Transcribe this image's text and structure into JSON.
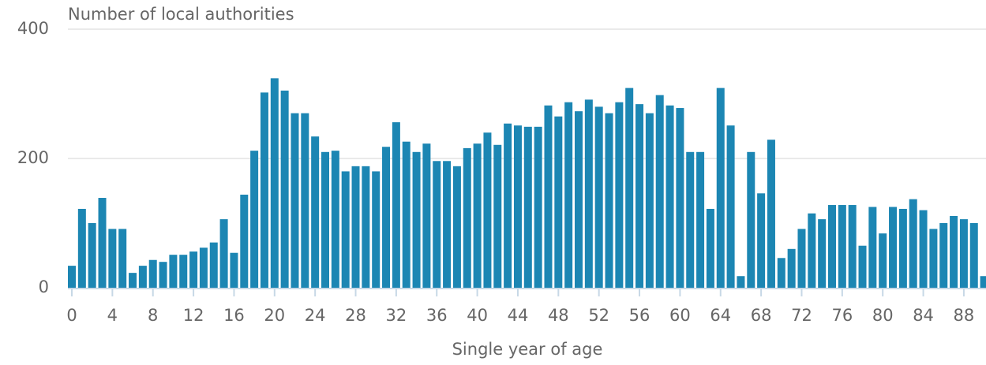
{
  "chart_data": {
    "type": "bar",
    "title": "Number of local authorities",
    "x_label": "Single year of age",
    "categories": [
      "0",
      null,
      null,
      null,
      "4",
      null,
      null,
      null,
      "8",
      null,
      null,
      null,
      "12",
      null,
      null,
      null,
      "16",
      null,
      null,
      null,
      "20",
      null,
      null,
      null,
      "24",
      null,
      null,
      null,
      "28",
      null,
      null,
      null,
      "32",
      null,
      null,
      null,
      "36",
      null,
      null,
      null,
      "40",
      null,
      null,
      null,
      "44",
      null,
      null,
      null,
      "48",
      null,
      null,
      null,
      "52",
      null,
      null,
      null,
      "56",
      null,
      null,
      null,
      "60",
      null,
      null,
      null,
      "64",
      null,
      null,
      null,
      "68",
      null,
      null,
      null,
      "72",
      null,
      null,
      null,
      "76",
      null,
      null,
      null,
      "80",
      null,
      null,
      null,
      "84",
      null,
      null,
      null,
      "88",
      null,
      null
    ],
    "values": [
      34,
      122,
      100,
      139,
      91,
      91,
      23,
      34,
      43,
      40,
      51,
      51,
      56,
      62,
      70,
      106,
      54,
      144,
      212,
      302,
      324,
      305,
      270,
      270,
      234,
      210,
      212,
      180,
      188,
      188,
      180,
      218,
      256,
      226,
      210,
      223,
      196,
      196,
      188,
      216,
      223,
      240,
      221,
      254,
      251,
      249,
      249,
      282,
      265,
      287,
      273,
      291,
      280,
      270,
      287,
      309,
      284,
      270,
      298,
      282,
      278,
      210,
      210,
      122,
      309,
      251,
      18,
      210,
      146,
      229,
      46,
      60,
      91,
      115,
      106,
      128,
      128,
      128,
      65,
      125,
      84,
      125,
      122,
      137,
      120,
      91,
      100,
      111,
      106,
      100,
      18
    ],
    "color": "#1c86b3",
    "ylim": [
      0,
      400
    ],
    "yticks": [
      0,
      200,
      400
    ],
    "grid": true
  }
}
